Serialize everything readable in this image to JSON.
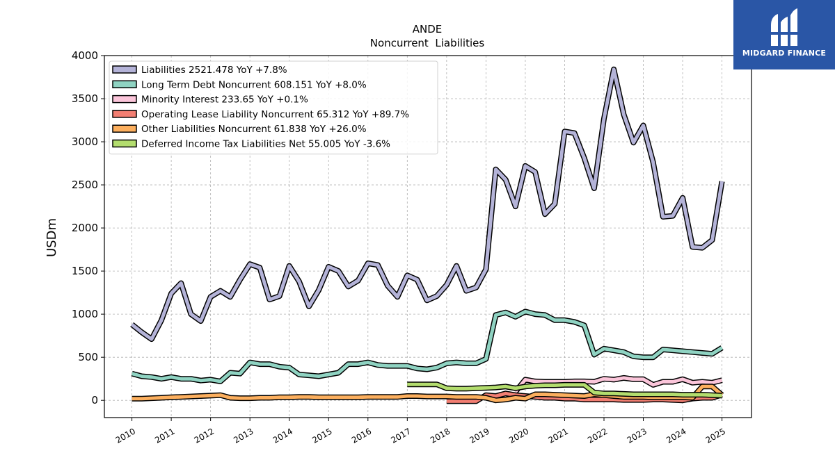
{
  "brand": {
    "name": "MIDGARD FINANCE",
    "bg_color": "#2a56a6",
    "icon": "midgard-logo-icon"
  },
  "chart_data": {
    "type": "line",
    "title": "ANDE",
    "subtitle": "Noncurrent  Liabilities",
    "ylabel": "USDm",
    "xlabel": "",
    "ylim": [
      -200,
      4000
    ],
    "xlim": [
      2009.3,
      2025.75
    ],
    "yticks": [
      0,
      500,
      1000,
      1500,
      2000,
      2500,
      3000,
      3500,
      4000
    ],
    "xticks": [
      "2010",
      "2011",
      "2012",
      "2013",
      "2014",
      "2015",
      "2016",
      "2017",
      "2018",
      "2019",
      "2020",
      "2021",
      "2022",
      "2023",
      "2024",
      "2025"
    ],
    "grid": true,
    "legend_position": "top-left",
    "series": [
      {
        "name": "Liabilities",
        "legend": "Liabilities  2521.478 YoY +7.8%",
        "color": "#b4b3d8",
        "x": [
          2010.0,
          2010.25,
          2010.5,
          2010.75,
          2011.0,
          2011.25,
          2011.5,
          2011.75,
          2012.0,
          2012.25,
          2012.5,
          2012.75,
          2013.0,
          2013.25,
          2013.5,
          2013.75,
          2014.0,
          2014.25,
          2014.5,
          2014.75,
          2015.0,
          2015.25,
          2015.5,
          2015.75,
          2016.0,
          2016.25,
          2016.5,
          2016.75,
          2017.0,
          2017.25,
          2017.5,
          2017.75,
          2018.0,
          2018.25,
          2018.5,
          2018.75,
          2019.0,
          2019.25,
          2019.5,
          2019.75,
          2020.0,
          2020.25,
          2020.5,
          2020.75,
          2021.0,
          2021.25,
          2021.5,
          2021.75,
          2022.0,
          2022.25,
          2022.5,
          2022.75,
          2023.0,
          2023.25,
          2023.5,
          2023.75,
          2024.0,
          2024.25,
          2024.5,
          2024.75,
          2025.0
        ],
        "y": [
          880,
          790,
          710,
          930,
          1240,
          1360,
          1000,
          920,
          1200,
          1270,
          1200,
          1400,
          1580,
          1540,
          1170,
          1210,
          1560,
          1380,
          1090,
          1280,
          1550,
          1500,
          1320,
          1390,
          1590,
          1570,
          1330,
          1200,
          1450,
          1400,
          1160,
          1210,
          1340,
          1560,
          1270,
          1310,
          1520,
          2680,
          2560,
          2250,
          2720,
          2650,
          2160,
          2280,
          3120,
          3100,
          2810,
          2460,
          3270,
          3840,
          3320,
          2990,
          3190,
          2760,
          2130,
          2140,
          2350,
          1780,
          1770,
          1860,
          2540
        ]
      },
      {
        "name": "Long Term Debt Noncurrent",
        "legend": "Long Term Debt Noncurrent  608.151 YoY +8.0%",
        "color": "#8fd3c2",
        "x": [
          2010.0,
          2010.25,
          2010.5,
          2010.75,
          2011.0,
          2011.25,
          2011.5,
          2011.75,
          2012.0,
          2012.25,
          2012.5,
          2012.75,
          2013.0,
          2013.25,
          2013.5,
          2013.75,
          2014.0,
          2014.25,
          2014.5,
          2014.75,
          2015.0,
          2015.25,
          2015.5,
          2015.75,
          2016.0,
          2016.25,
          2016.5,
          2016.75,
          2017.0,
          2017.25,
          2017.5,
          2017.75,
          2018.0,
          2018.25,
          2018.5,
          2018.75,
          2019.0,
          2019.25,
          2019.5,
          2019.75,
          2020.0,
          2020.25,
          2020.5,
          2020.75,
          2021.0,
          2021.25,
          2021.5,
          2021.75,
          2022.0,
          2022.25,
          2022.5,
          2022.75,
          2023.0,
          2023.25,
          2023.5,
          2023.75,
          2024.0,
          2024.25,
          2024.5,
          2024.75,
          2025.0
        ],
        "y": [
          310,
          280,
          270,
          250,
          270,
          250,
          250,
          230,
          240,
          220,
          320,
          310,
          440,
          420,
          420,
          390,
          380,
          300,
          290,
          280,
          300,
          320,
          420,
          420,
          440,
          410,
          400,
          400,
          400,
          370,
          360,
          380,
          430,
          440,
          430,
          430,
          480,
          990,
          1020,
          970,
          1030,
          1000,
          990,
          930,
          930,
          910,
          870,
          530,
          600,
          580,
          560,
          510,
          500,
          500,
          590,
          580,
          570,
          560,
          550,
          540,
          610
        ]
      },
      {
        "name": "Minority Interest",
        "legend": "Minority Interest  233.65 YoY +0.1%",
        "color": "#fbc5da",
        "x": [
          2019.75,
          2020.0,
          2020.25,
          2020.5,
          2020.75,
          2021.0,
          2021.25,
          2021.5,
          2021.75,
          2022.0,
          2022.25,
          2022.5,
          2022.75,
          2023.0,
          2023.25,
          2023.5,
          2023.75,
          2024.0,
          2024.25,
          2024.5,
          2024.75,
          2025.0
        ],
        "y": [
          100,
          240,
          220,
          215,
          215,
          215,
          220,
          220,
          215,
          250,
          240,
          260,
          245,
          245,
          180,
          215,
          215,
          245,
          205,
          215,
          205,
          233
        ]
      },
      {
        "name": "Operating Lease Liability Noncurrent",
        "legend": "Operating Lease Liability Noncurrent  65.312 YoY +89.7%",
        "color": "#f27e72",
        "x": [
          2018.0,
          2018.25,
          2018.5,
          2018.75,
          2019.0,
          2019.25,
          2019.5,
          2019.75,
          2020.0,
          2020.25,
          2020.5,
          2020.75,
          2021.0,
          2021.25,
          2021.5,
          2021.75,
          2022.0,
          2022.25,
          2022.5,
          2022.75,
          2023.0,
          2023.25,
          2023.5,
          2023.75,
          2024.0,
          2024.25,
          2024.5,
          2024.75,
          2025.0
        ],
        "y": [
          -10,
          -10,
          -10,
          -10,
          60,
          50,
          80,
          60,
          50,
          40,
          30,
          30,
          20,
          20,
          10,
          10,
          10,
          10,
          5,
          5,
          5,
          10,
          10,
          5,
          0,
          20,
          30,
          30,
          65
        ]
      },
      {
        "name": "Other Liabilities Noncurrent",
        "legend": "Other Liabilities Noncurrent  61.838 YoY +26.0%",
        "color": "#fcaf5e",
        "x": [
          2010.0,
          2010.25,
          2010.5,
          2010.75,
          2011.0,
          2011.25,
          2011.5,
          2011.75,
          2012.0,
          2012.25,
          2012.5,
          2012.75,
          2013.0,
          2013.25,
          2013.5,
          2013.75,
          2014.0,
          2014.25,
          2014.5,
          2014.75,
          2015.0,
          2015.25,
          2015.5,
          2015.75,
          2016.0,
          2016.25,
          2016.5,
          2016.75,
          2017.0,
          2017.25,
          2017.5,
          2017.75,
          2018.0,
          2018.25,
          2018.5,
          2018.75,
          2019.0,
          2019.25,
          2019.5,
          2019.75,
          2020.0,
          2020.25,
          2020.5,
          2020.75,
          2021.0,
          2021.25,
          2021.5,
          2021.75,
          2022.0,
          2022.25,
          2022.5,
          2022.75,
          2023.0,
          2023.25,
          2023.5,
          2023.75,
          2024.0,
          2024.25,
          2024.5,
          2024.75,
          2025.0
        ],
        "y": [
          20,
          20,
          25,
          30,
          35,
          40,
          45,
          50,
          55,
          60,
          30,
          25,
          25,
          30,
          30,
          35,
          35,
          40,
          40,
          35,
          35,
          35,
          35,
          35,
          40,
          40,
          40,
          40,
          50,
          50,
          45,
          45,
          45,
          40,
          40,
          40,
          30,
          0,
          10,
          30,
          20,
          70,
          70,
          65,
          60,
          55,
          50,
          70,
          60,
          50,
          40,
          40,
          40,
          35,
          35,
          35,
          35,
          30,
          160,
          160,
          62
        ]
      },
      {
        "name": "Deferred Income Tax Liabilities Net",
        "legend": "Deferred Income Tax Liabilities Net  55.005 YoY -3.6%",
        "color": "#b3dd6e",
        "x": [
          2017.0,
          2017.25,
          2017.5,
          2017.75,
          2018.0,
          2018.25,
          2018.5,
          2018.75,
          2019.0,
          2019.25,
          2019.5,
          2019.75,
          2020.0,
          2020.25,
          2020.5,
          2020.75,
          2021.0,
          2021.25,
          2021.5,
          2021.75,
          2022.0,
          2022.25,
          2022.5,
          2022.75,
          2023.0,
          2023.25,
          2023.5,
          2023.75,
          2024.0,
          2024.25,
          2024.5,
          2024.75,
          2025.0
        ],
        "y": [
          185,
          185,
          185,
          185,
          140,
          135,
          135,
          140,
          145,
          150,
          160,
          140,
          160,
          170,
          175,
          175,
          180,
          180,
          180,
          90,
          80,
          80,
          75,
          70,
          70,
          70,
          70,
          70,
          65,
          65,
          65,
          60,
          55
        ]
      }
    ]
  }
}
